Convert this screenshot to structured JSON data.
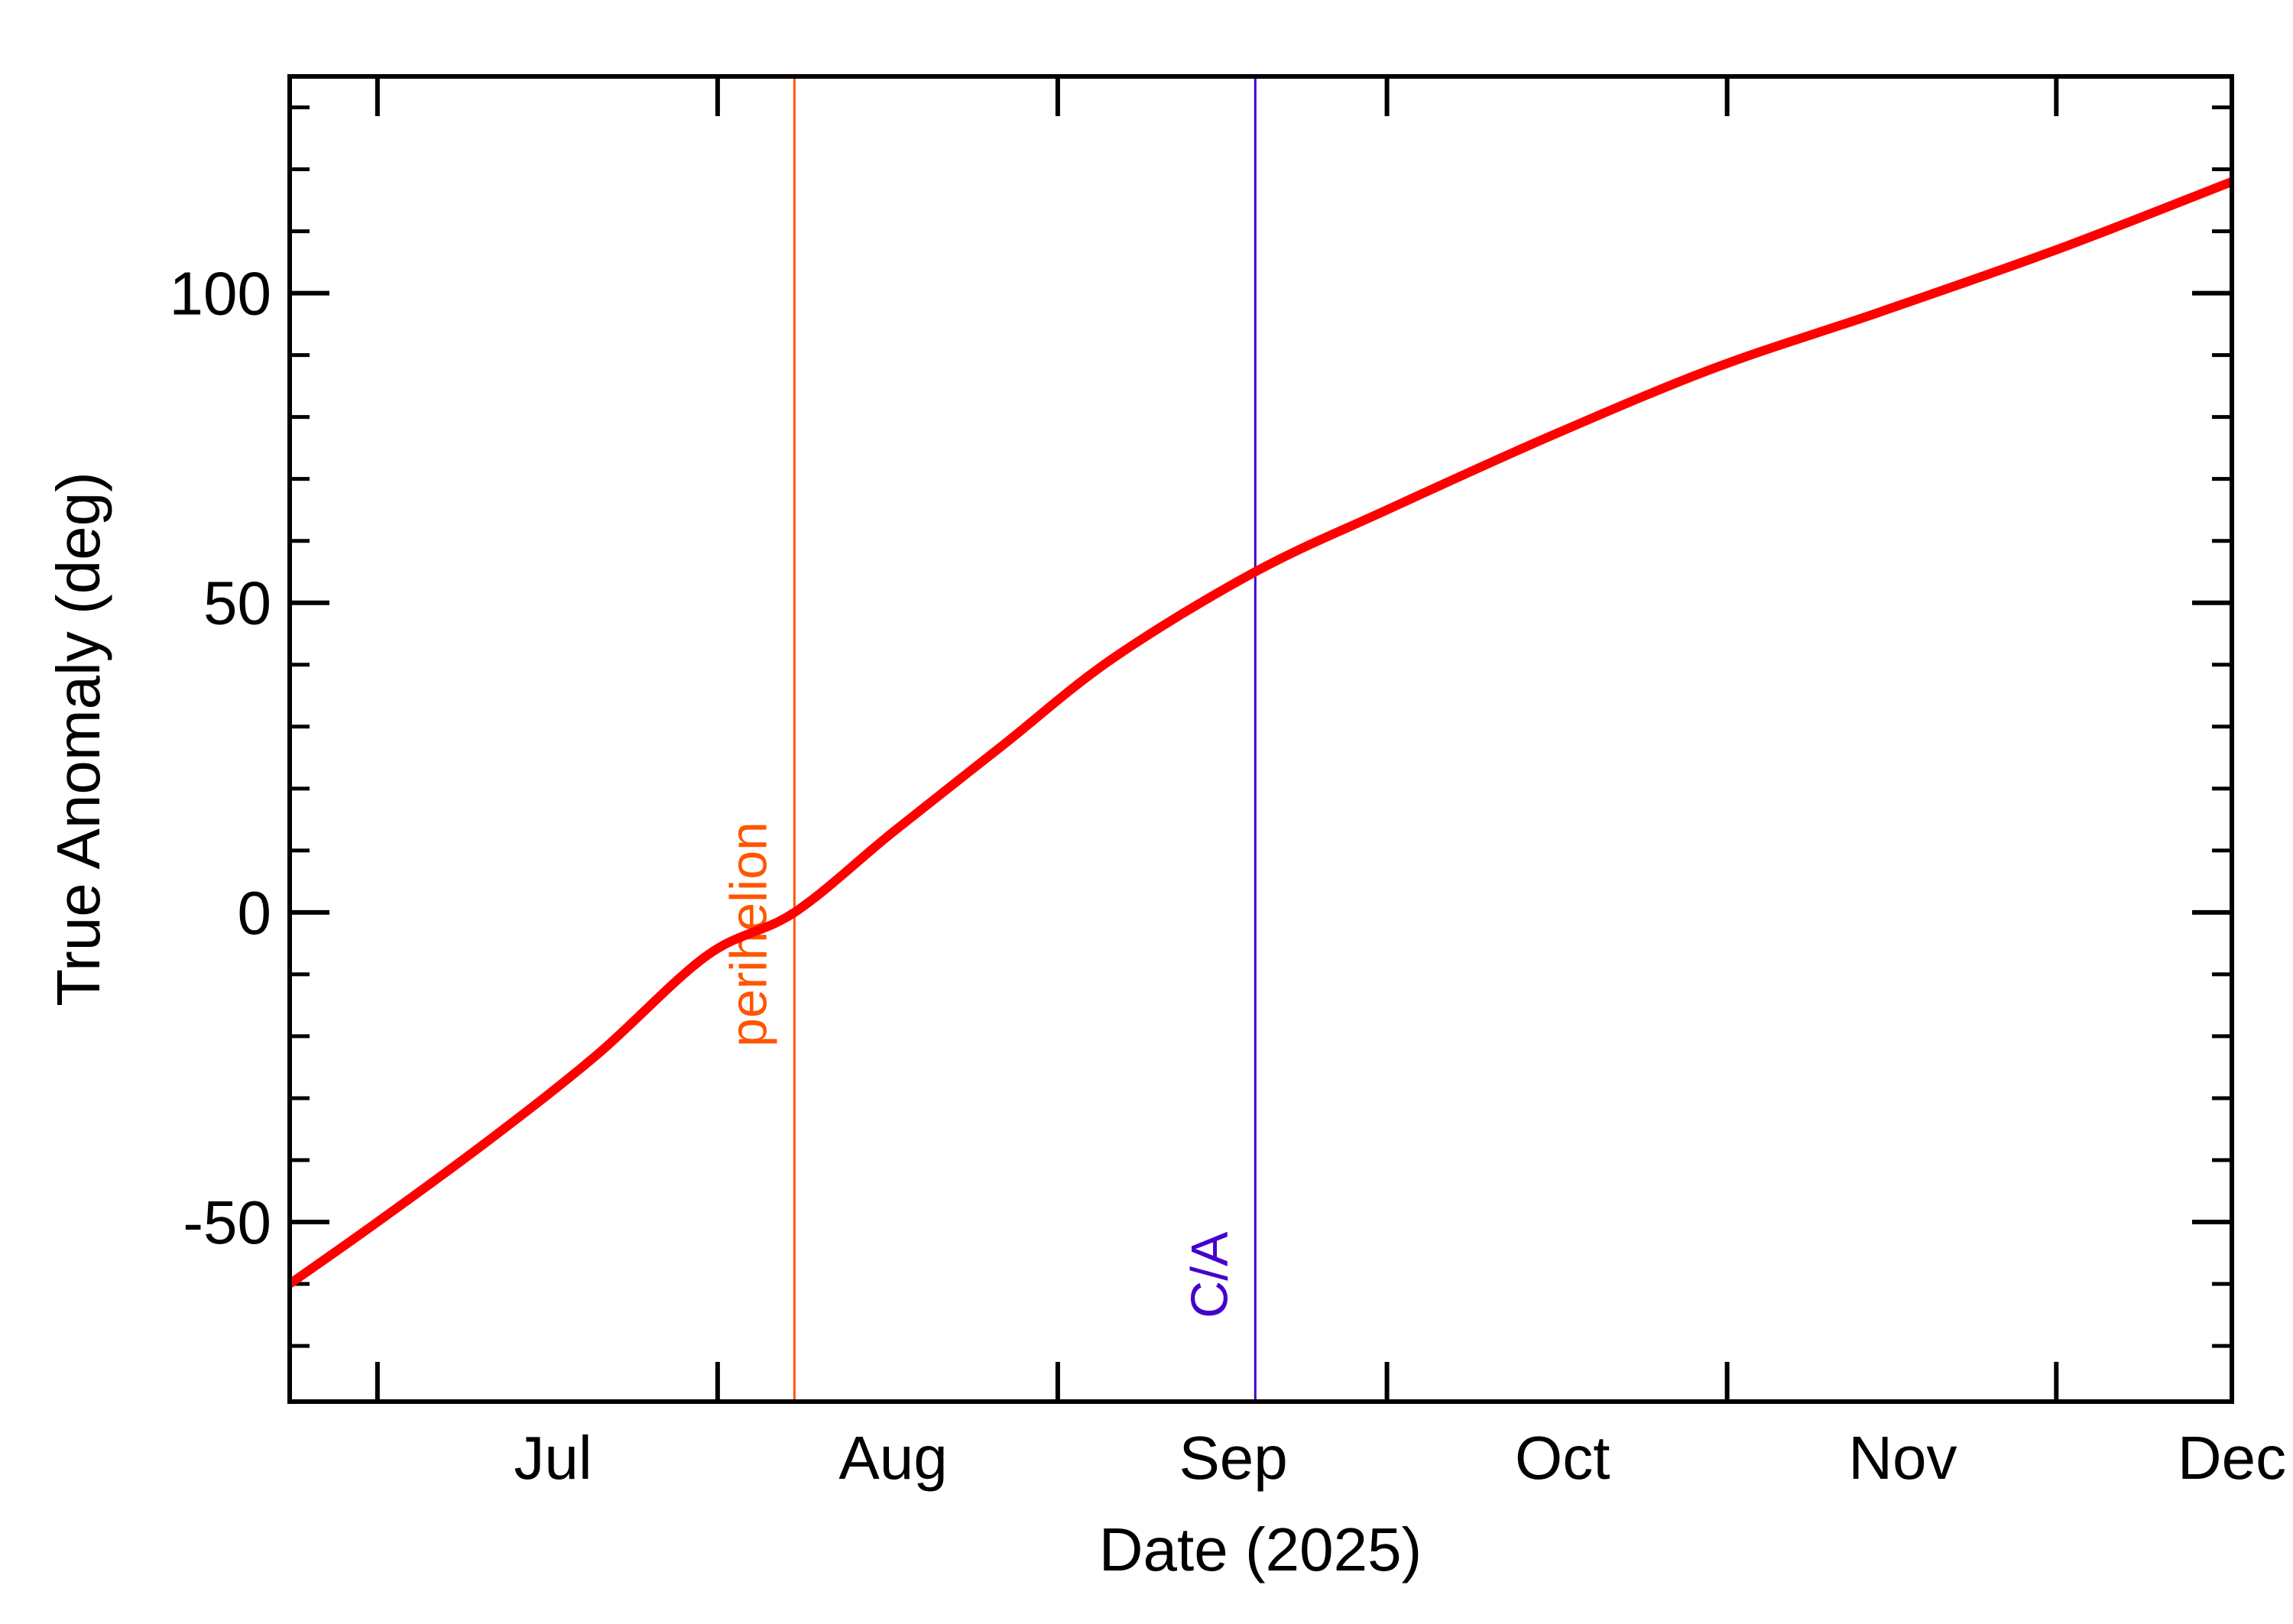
{
  "chart_data": {
    "type": "line",
    "title": "",
    "xlabel": "Date (2025)",
    "ylabel": "True Anomaly (deg)",
    "xlim": [
      "2025-06-07",
      "2025-12-01"
    ],
    "ylim": [
      -79,
      135
    ],
    "x_ticks": [
      {
        "date": "2025-06-15",
        "label": "Jul",
        "label_date": "2025-07-01"
      },
      {
        "date": "2025-07-16",
        "label": "Aug",
        "label_date": "2025-08-01"
      },
      {
        "date": "2025-08-16",
        "label": "Sep",
        "label_date": "2025-09-01"
      },
      {
        "date": "2025-09-15",
        "label": "Oct",
        "label_date": "2025-10-01"
      },
      {
        "date": "2025-10-16",
        "label": "Nov",
        "label_date": "2025-11-01"
      },
      {
        "date": "2025-11-15",
        "label": "Dec",
        "label_date": "2025-12-01"
      }
    ],
    "y_major_ticks": [
      -50,
      0,
      50,
      100
    ],
    "y_minor_step": 10,
    "grid": false,
    "series": [
      {
        "color": "#ff0000",
        "points": [
          {
            "x": "2025-06-07",
            "y": -60
          },
          {
            "x": "2025-06-15",
            "y": -50
          },
          {
            "x": "2025-06-25",
            "y": -37
          },
          {
            "x": "2025-07-05",
            "y": -23
          },
          {
            "x": "2025-07-15",
            "y": -7
          },
          {
            "x": "2025-07-23",
            "y": 0
          },
          {
            "x": "2025-08-01",
            "y": 13
          },
          {
            "x": "2025-08-11",
            "y": 27
          },
          {
            "x": "2025-08-21",
            "y": 41
          },
          {
            "x": "2025-09-03",
            "y": 55
          },
          {
            "x": "2025-09-15",
            "y": 65
          },
          {
            "x": "2025-09-30",
            "y": 77
          },
          {
            "x": "2025-10-15",
            "y": 88
          },
          {
            "x": "2025-10-30",
            "y": 97
          },
          {
            "x": "2025-11-15",
            "y": 107
          },
          {
            "x": "2025-12-01",
            "y": 118
          }
        ]
      }
    ],
    "markers": [
      {
        "x": "2025-07-23",
        "label": "perihelion",
        "color": "#ff5500"
      },
      {
        "x": "2025-09-03",
        "label": "C/A",
        "color": "#4400cc"
      }
    ]
  }
}
